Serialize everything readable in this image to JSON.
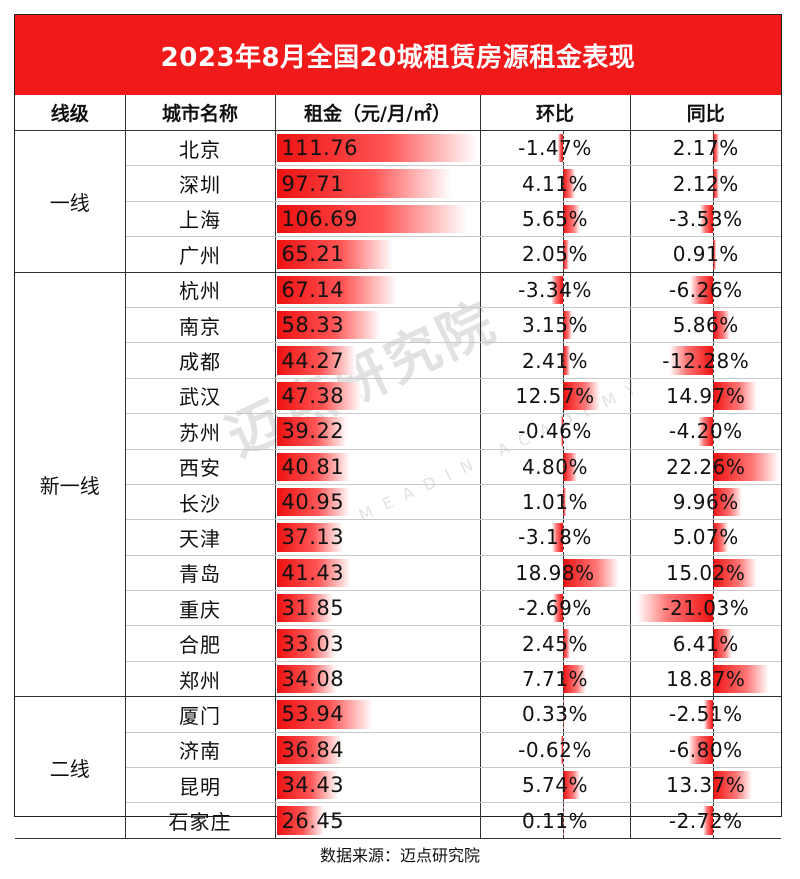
{
  "title": "2023年8月全国20城租赁房源租金表现",
  "headers": [
    "线级",
    "城市名称",
    "租金（元/月/㎡）",
    "环比",
    "同比"
  ],
  "source": "数据来源：迈点研究院",
  "watermark": {
    "main": "迈点研究院",
    "sub": "MEADIN ACADEMY"
  },
  "colors": {
    "title_bg": "#f11a1a",
    "bar": "#ee1111"
  },
  "chart_data": {
    "type": "table",
    "title": "2023年8月全国20城租赁房源租金表现",
    "columns": [
      "线级",
      "城市名称",
      "租金（元/月/㎡）",
      "环比",
      "同比"
    ],
    "rent_max": 111.76,
    "pct_min": -21.03,
    "pct_max": 22.26,
    "groups": [
      {
        "tier": "一线",
        "rows": [
          {
            "city": "北京",
            "rent": 111.76,
            "mom": -1.47,
            "yoy": 2.17
          },
          {
            "city": "深圳",
            "rent": 97.71,
            "mom": 4.11,
            "yoy": 2.12
          },
          {
            "city": "上海",
            "rent": 106.69,
            "mom": 5.65,
            "yoy": -3.53
          },
          {
            "city": "广州",
            "rent": 65.21,
            "mom": 2.05,
            "yoy": 0.91
          }
        ]
      },
      {
        "tier": "新一线",
        "rows": [
          {
            "city": "杭州",
            "rent": 67.14,
            "mom": -3.34,
            "yoy": -6.26
          },
          {
            "city": "南京",
            "rent": 58.33,
            "mom": 3.15,
            "yoy": 5.86
          },
          {
            "city": "成都",
            "rent": 44.27,
            "mom": 2.41,
            "yoy": -12.28
          },
          {
            "city": "武汉",
            "rent": 47.38,
            "mom": 12.57,
            "yoy": 14.97
          },
          {
            "city": "苏州",
            "rent": 39.22,
            "mom": -0.46,
            "yoy": -4.2
          },
          {
            "city": "西安",
            "rent": 40.81,
            "mom": 4.8,
            "yoy": 22.26
          },
          {
            "city": "长沙",
            "rent": 40.95,
            "mom": 1.01,
            "yoy": 9.96
          },
          {
            "city": "天津",
            "rent": 37.13,
            "mom": -3.18,
            "yoy": 5.07
          },
          {
            "city": "青岛",
            "rent": 41.43,
            "mom": 18.98,
            "yoy": 15.02
          },
          {
            "city": "重庆",
            "rent": 31.85,
            "mom": -2.69,
            "yoy": -21.03
          },
          {
            "city": "合肥",
            "rent": 33.03,
            "mom": 2.45,
            "yoy": 6.41
          },
          {
            "city": "郑州",
            "rent": 34.08,
            "mom": 7.71,
            "yoy": 18.87
          }
        ]
      },
      {
        "tier": "二线",
        "rows": [
          {
            "city": "厦门",
            "rent": 53.94,
            "mom": 0.33,
            "yoy": -2.51
          },
          {
            "city": "济南",
            "rent": 36.84,
            "mom": -0.62,
            "yoy": -6.8
          },
          {
            "city": "昆明",
            "rent": 34.43,
            "mom": 5.74,
            "yoy": 13.37
          },
          {
            "city": "石家庄",
            "rent": 26.45,
            "mom": 0.11,
            "yoy": -2.72
          }
        ]
      }
    ]
  }
}
